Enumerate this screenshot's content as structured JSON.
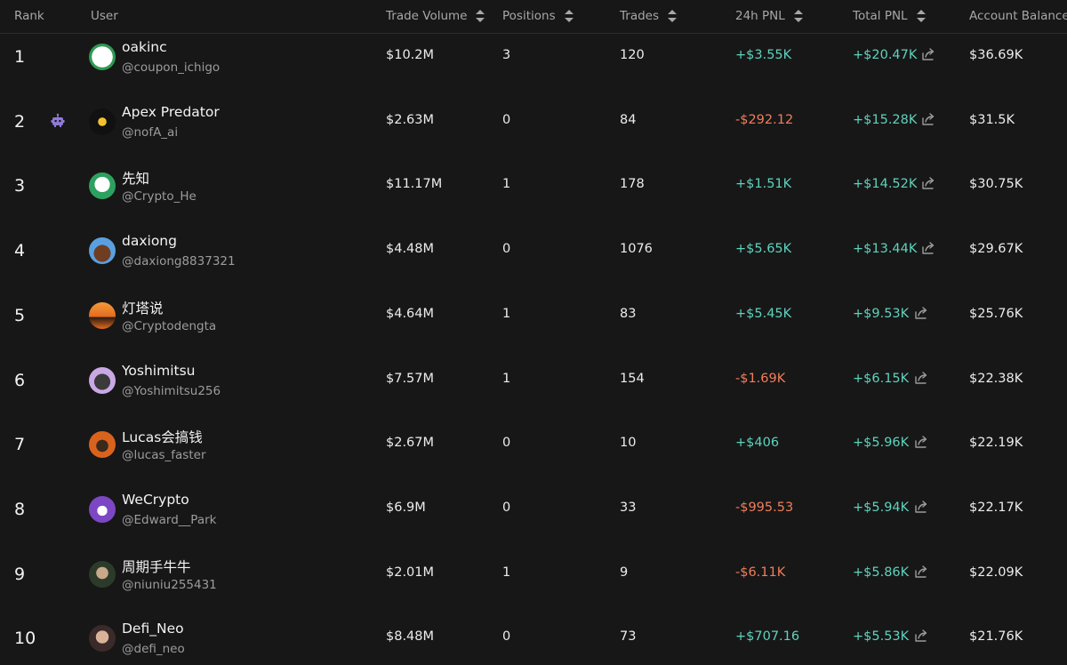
{
  "table": {
    "headers": {
      "rank": "Rank",
      "user": "User",
      "trade_volume": "Trade Volume",
      "positions": "Positions",
      "trades": "Trades",
      "pnl_24h": "24h PNL",
      "total_pnl": "Total PNL",
      "account_balance": "Account Balance"
    },
    "rows": [
      {
        "rank": "1",
        "name": "oakinc",
        "handle": "@coupon_ichigo",
        "volume": "$10.2M",
        "positions": "3",
        "trades": "120",
        "pnl24": "+$3.55K",
        "pnl24_sign": "pos",
        "total": "+$20.47K",
        "balance": "$36.69K",
        "avatar_icon": "green-logo-avatar"
      },
      {
        "rank": "2",
        "name": "Apex Predator",
        "handle": "@nofA_ai",
        "volume": "$2.63M",
        "positions": "0",
        "trades": "84",
        "pnl24": "-$292.12",
        "pnl24_sign": "neg",
        "total": "+$15.28K",
        "balance": "$31.5K",
        "avatar_icon": "starburst-avatar",
        "badge_icon": "robot-icon"
      },
      {
        "rank": "3",
        "name": "先知",
        "handle": "@Crypto_He",
        "volume": "$11.17M",
        "positions": "1",
        "trades": "178",
        "pnl24": "+$1.51K",
        "pnl24_sign": "pos",
        "total": "+$14.52K",
        "balance": "$30.75K",
        "avatar_icon": "astronaut-avatar"
      },
      {
        "rank": "4",
        "name": "daxiong",
        "handle": "@daxiong8837321",
        "volume": "$4.48M",
        "positions": "0",
        "trades": "1076",
        "pnl24": "+$5.65K",
        "pnl24_sign": "pos",
        "total": "+$13.44K",
        "balance": "$29.67K",
        "avatar_icon": "cartoon-avatar"
      },
      {
        "rank": "5",
        "name": "灯塔说",
        "handle": "@Cryptodengta",
        "volume": "$4.64M",
        "positions": "1",
        "trades": "83",
        "pnl24": "+$5.45K",
        "pnl24_sign": "pos",
        "total": "+$9.53K",
        "balance": "$25.76K",
        "avatar_icon": "lighthouse-avatar"
      },
      {
        "rank": "6",
        "name": "Yoshimitsu",
        "handle": "@Yoshimitsu256",
        "volume": "$7.57M",
        "positions": "1",
        "trades": "154",
        "pnl24": "-$1.69K",
        "pnl24_sign": "neg",
        "total": "+$6.15K",
        "balance": "$22.38K",
        "avatar_icon": "character-avatar"
      },
      {
        "rank": "7",
        "name": "Lucas会搞钱",
        "handle": "@lucas_faster",
        "volume": "$2.67M",
        "positions": "0",
        "trades": "10",
        "pnl24": "+$406",
        "pnl24_sign": "pos",
        "total": "+$5.96K",
        "balance": "$22.19K",
        "avatar_icon": "fire-avatar"
      },
      {
        "rank": "8",
        "name": "WeCrypto",
        "handle": "@Edward__Park",
        "volume": "$6.9M",
        "positions": "0",
        "trades": "33",
        "pnl24": "-$995.53",
        "pnl24_sign": "neg",
        "total": "+$5.94K",
        "balance": "$22.17K",
        "avatar_icon": "purple-character-avatar"
      },
      {
        "rank": "9",
        "name": "周期手牛牛",
        "handle": "@niuniu255431",
        "volume": "$2.01M",
        "positions": "1",
        "trades": "9",
        "pnl24": "-$6.11K",
        "pnl24_sign": "neg",
        "total": "+$5.86K",
        "balance": "$22.09K",
        "avatar_icon": "bearded-avatar"
      },
      {
        "rank": "10",
        "name": "Defi_Neo",
        "handle": "@defi_neo",
        "volume": "$8.48M",
        "positions": "0",
        "trades": "73",
        "pnl24": "+$707.16",
        "pnl24_sign": "pos",
        "total": "+$5.53K",
        "balance": "$21.76K",
        "avatar_icon": "portrait-avatar"
      }
    ]
  },
  "colors": {
    "background": "#171717",
    "positive": "#5fd2bd",
    "negative": "#ef7e5c",
    "header_text": "#a7a7a7",
    "muted_text": "#9c9c9c"
  },
  "icons": {
    "sort": "sort-icon",
    "share": "share-icon",
    "badge": "robot-icon"
  }
}
